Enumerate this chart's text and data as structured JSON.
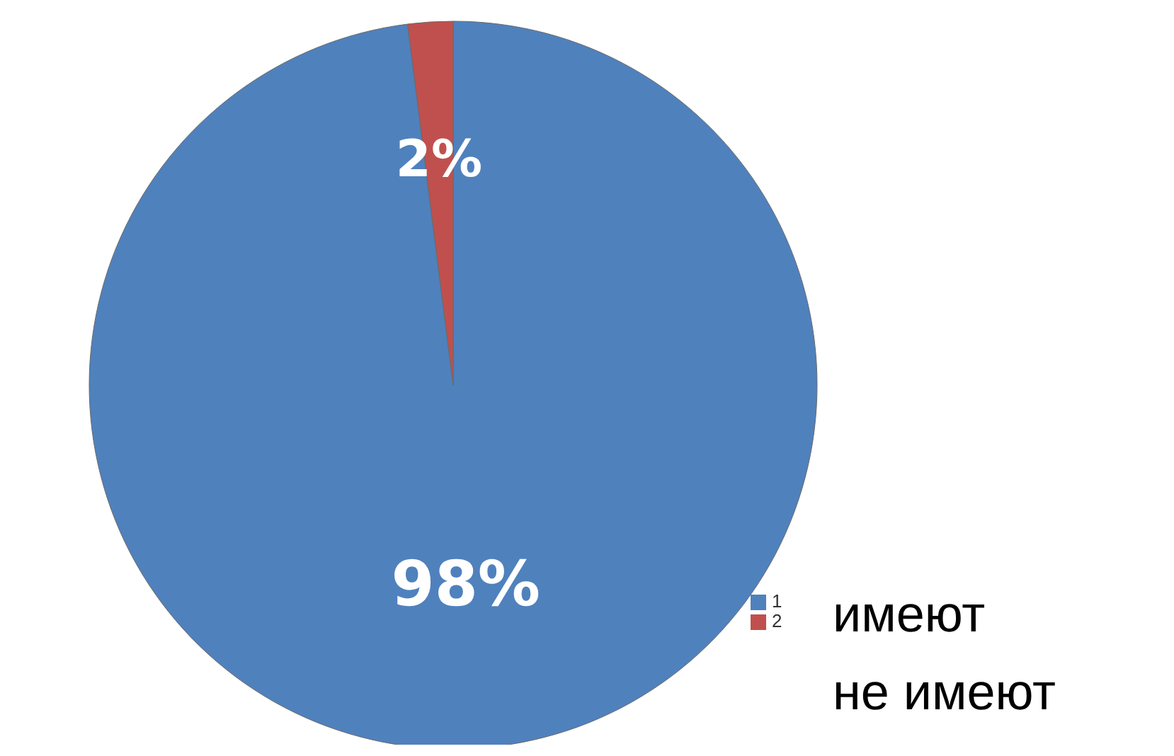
{
  "chart_data": {
    "type": "pie",
    "categories": [
      "1",
      "2"
    ],
    "values": [
      98,
      2
    ],
    "colors": [
      "#4f81bd",
      "#c0504d"
    ],
    "value_labels": [
      "98%",
      "2%"
    ],
    "legend": "bottom right",
    "annotations": [
      "имеют",
      "не имеют"
    ]
  }
}
